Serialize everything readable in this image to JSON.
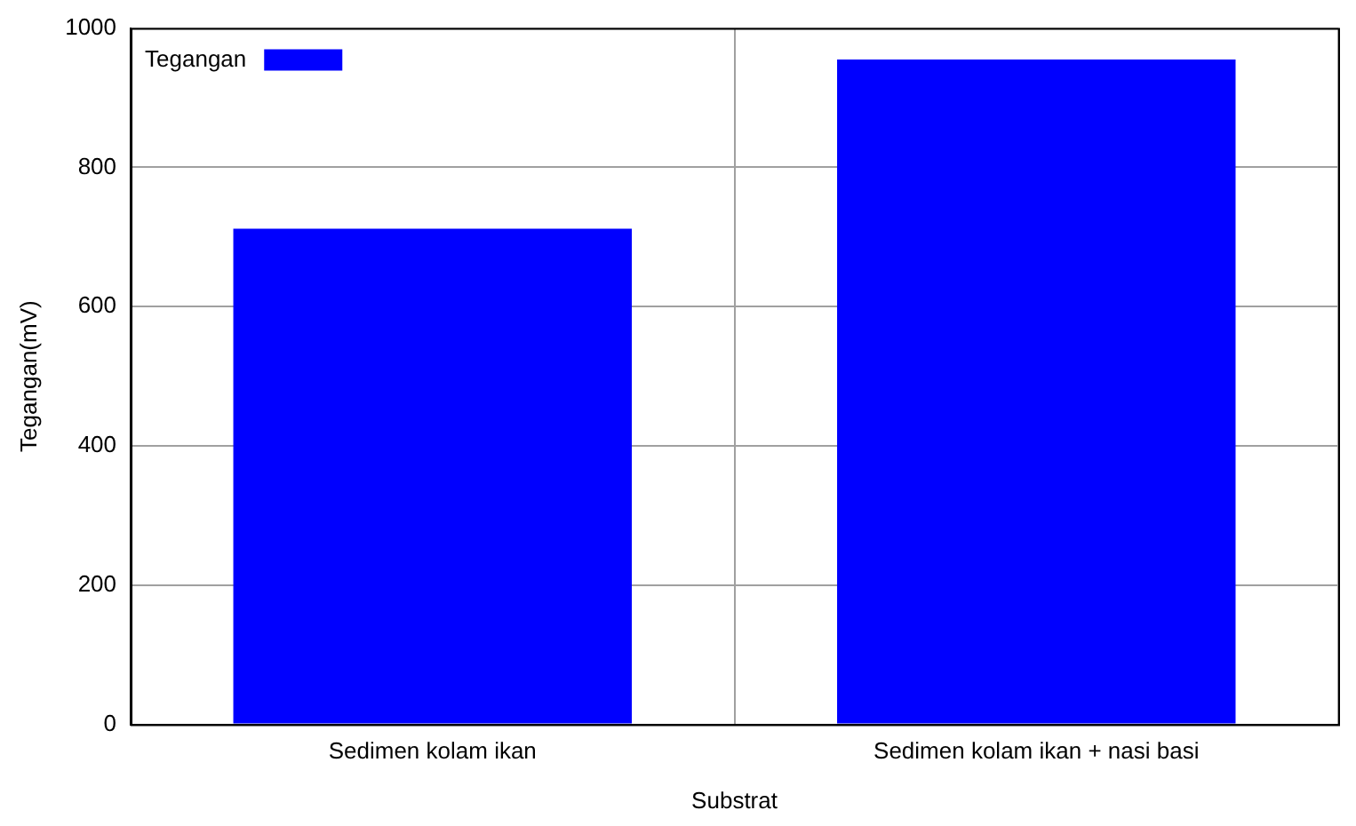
{
  "chart_data": {
    "type": "bar",
    "xlabel": "Substrat",
    "ylabel": "Tegangan(mV)",
    "categories": [
      "Sedimen kolam ikan",
      "Sedimen kolam ikan + nasi basi"
    ],
    "series": [
      {
        "name": "Tegangan",
        "color": "#0000ff",
        "values": [
          712,
          955
        ]
      }
    ],
    "ylim": [
      0,
      1000
    ],
    "yticks": [
      0,
      200,
      400,
      600,
      800,
      1000
    ],
    "grid": true,
    "legend": "top left"
  }
}
